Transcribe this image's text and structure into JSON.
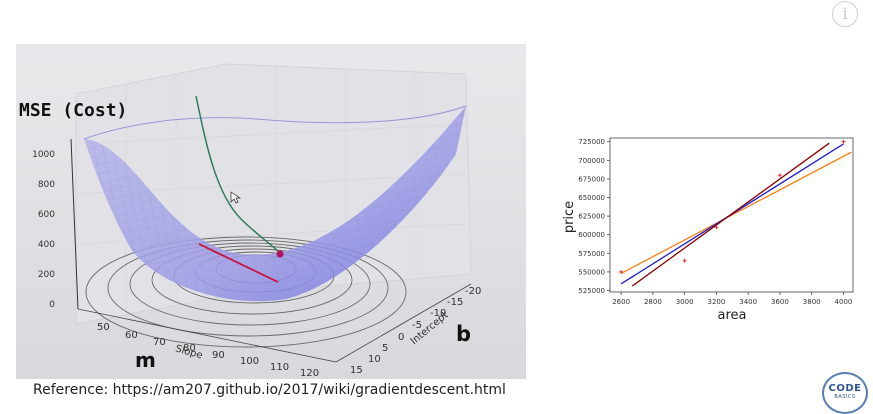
{
  "info_icon": "i",
  "plot3d": {
    "z_axis_label": "MSE (Cost)",
    "z_ticks": [
      "1000",
      "800",
      "600",
      "400",
      "200",
      "0"
    ],
    "slope_ticks": [
      "50",
      "60",
      "70",
      "80",
      "90",
      "100",
      "110",
      "120"
    ],
    "slope_axis_label": "Slope",
    "slope_var": "m",
    "intercept_ticks": [
      "-20",
      "-15",
      "-10",
      "-5",
      "0",
      "5",
      "10",
      "15"
    ],
    "intercept_axis_label": "Intercept",
    "intercept_var": "b"
  },
  "chart_data": {
    "type": "scatter",
    "xlabel": "area",
    "ylabel": "price",
    "xticks": [
      "2600",
      "2800",
      "3000",
      "3200",
      "3400",
      "3600",
      "3800",
      "4000"
    ],
    "yticks": [
      "525000",
      "550000",
      "575000",
      "600000",
      "625000",
      "650000",
      "675000",
      "700000",
      "725000"
    ],
    "xlim": [
      2530,
      4060
    ],
    "ylim": [
      523000,
      730000
    ],
    "points": [
      {
        "x": 2600,
        "y": 550000
      },
      {
        "x": 3000,
        "y": 565000
      },
      {
        "x": 3200,
        "y": 610000
      },
      {
        "x": 3600,
        "y": 680000
      },
      {
        "x": 4000,
        "y": 725000
      }
    ],
    "lines": [
      {
        "color": "#ff7f0e",
        "x": [
          2600,
          4050
        ],
        "y": [
          548000,
          711000
        ]
      },
      {
        "color": "#1f1fd0",
        "x": [
          2600,
          4000
        ],
        "y": [
          534000,
          722000
        ]
      },
      {
        "color": "#8b0000",
        "x": [
          2670,
          3910
        ],
        "y": [
          531000,
          723000
        ]
      }
    ],
    "point_color": "#e03030"
  },
  "caption": "Reference: https://am207.github.io/2017/wiki/gradientdescent.html",
  "logo": {
    "line1": "CODE",
    "line2": "BASICS"
  }
}
